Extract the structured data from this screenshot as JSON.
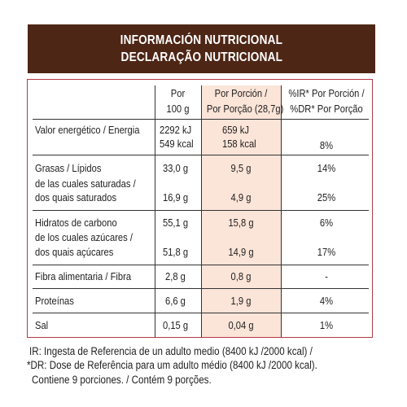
{
  "header": {
    "title_es": "INFORMACIÓN NUTRICIONAL",
    "title_pt": "DECLARAÇÃO NUTRICIONAL"
  },
  "columns": {
    "per100_l1": "Por",
    "per100_l2": "100 g",
    "portion_l1": "Por Porción /",
    "portion_l2": "Por Porção (28,7g)",
    "ir_l1": "%IR* Por Porción /",
    "ir_l2": "%DR* Por Porção"
  },
  "rows": {
    "energy": {
      "label": "Valor energético / Energia",
      "per100_kj": "2292 kJ",
      "per100_kcal": "549 kcal",
      "portion_kj": "659 kJ",
      "portion_kcal": "158 kcal",
      "ir": "8%"
    },
    "fat": {
      "label": "Grasas / Lípidos",
      "per100": "33,0 g",
      "portion": "9,5 g",
      "ir": "14%"
    },
    "sat": {
      "label_l1": "de las cuales saturadas /",
      "label_l2": "dos quais saturados",
      "per100": "16,9 g",
      "portion": "4,9 g",
      "ir": "25%"
    },
    "carb": {
      "label": "Hidratos de carbono",
      "per100": "55,1 g",
      "portion": "15,8 g",
      "ir": "6%"
    },
    "sugar": {
      "label_l1": "de los cuales azúcares /",
      "label_l2": "dos quais açúcares",
      "per100": "51,8 g",
      "portion": "14,9 g",
      "ir": "17%"
    },
    "fibre": {
      "label": "Fibra alimentaria / Fibra",
      "per100": "2,8 g",
      "portion": "0,8 g",
      "ir": "-"
    },
    "protein": {
      "label": "Proteínas",
      "per100": "6,6 g",
      "portion": "1,9 g",
      "ir": "4%"
    },
    "salt": {
      "label": "Sal",
      "per100": "0,15 g",
      "portion": "0,04 g",
      "ir": "1%"
    }
  },
  "footnotes": {
    "line1": "IR: Ingesta de Referencia de un adulto medio (8400 kJ /2000 kcal) /",
    "line2": "*DR: Dose de Referência para um adulto médio (8400 kJ /2000 kcal).",
    "line3": "Contiene 9 porciones. / Contém 9 porções."
  },
  "colors": {
    "banner": "#4e2616",
    "border": "#b23a45",
    "highlight": "#fbe4d8"
  }
}
